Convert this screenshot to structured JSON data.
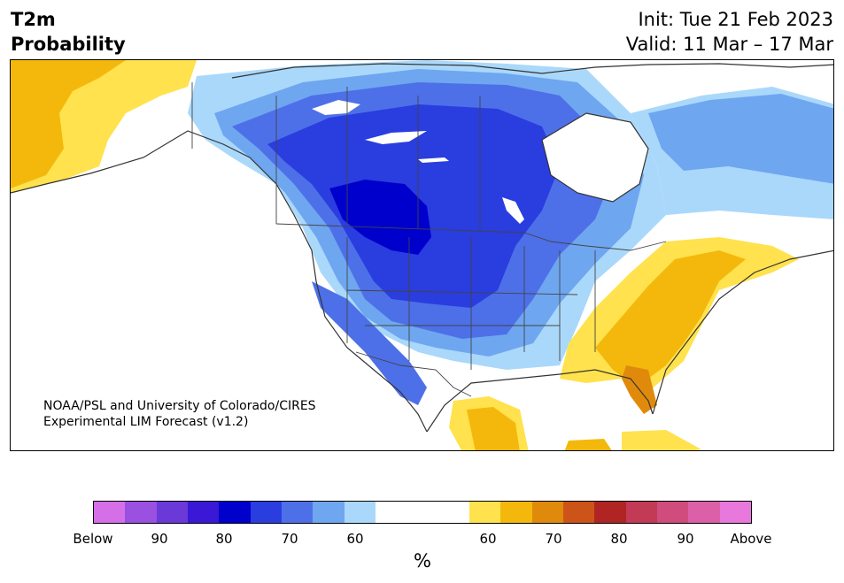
{
  "header": {
    "variable": "T2m",
    "quantity": "Probability",
    "init": "Init: Tue 21 Feb 2023",
    "valid": "Valid: 11 Mar – 17 Mar"
  },
  "credit": {
    "line1": "NOAA/PSL and University of Colorado/CIRES",
    "line2": "Experimental LIM Forecast (v1.2)"
  },
  "colorbar": {
    "unit": "%",
    "ticks": [
      "Below",
      "90",
      "80",
      "70",
      "60",
      "60",
      "70",
      "80",
      "90",
      "Above"
    ],
    "colors": {
      "below_95": "#d56fe8",
      "below_90": "#9a50e0",
      "below_85": "#6a39d8",
      "below_80": "#3a18d6",
      "below_75": "#0000cd",
      "below_70": "#2a3ddf",
      "below_65": "#4d70e8",
      "below_60": "#6fa6f0",
      "below_55": "#aad8fb",
      "neutral": "#ffffff",
      "above_55": "#ffe24d",
      "above_60": "#f4b80c",
      "above_65": "#e08a0c",
      "above_70": "#cc5418",
      "above_75": "#b02424",
      "above_80": "#c23a55",
      "above_85": "#cf4c7d",
      "above_90": "#dc60a8",
      "above_95": "#e878dc"
    }
  },
  "map": {
    "region": "North America",
    "forecast": "Colder than normal probabilities over the western and central US and Canada; warmer than normal probabilities over the southeastern and northeastern US and Alaska"
  }
}
